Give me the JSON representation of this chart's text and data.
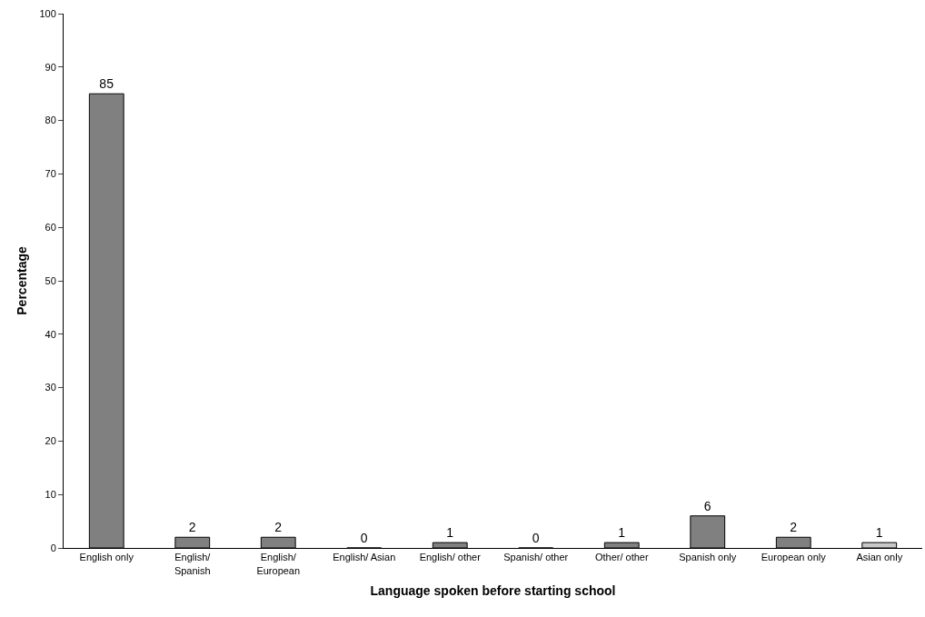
{
  "chart_data": {
    "type": "bar",
    "xlabel": "Language spoken before starting school",
    "ylabel": "Percentage",
    "categories": [
      "English only",
      "English/\nSpanish",
      "English/\nEuropean",
      "English/ Asian",
      "English/ other",
      "Spanish/ other",
      "Other/ other",
      "Spanish only",
      "European only",
      "Asian only"
    ],
    "values": [
      85,
      2,
      2,
      0,
      1,
      0,
      1,
      6,
      2,
      1
    ],
    "colors": [
      "#808080",
      "#808080",
      "#808080",
      "#808080",
      "#808080",
      "#808080",
      "#808080",
      "#808080",
      "#808080",
      "#c8c8c8"
    ],
    "ylim": [
      0,
      100
    ],
    "yticks": [
      0,
      10,
      20,
      30,
      40,
      50,
      60,
      70,
      80,
      90,
      100
    ],
    "data_labels": true,
    "grid": false,
    "legend": false
  }
}
